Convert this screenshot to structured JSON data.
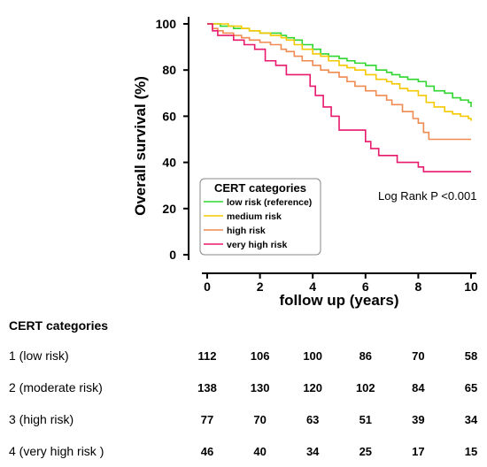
{
  "chart_data": {
    "type": "line",
    "title": "",
    "xlabel": "follow up (years)",
    "ylabel": "Overall survival (%)",
    "xlim": [
      0,
      10
    ],
    "ylim": [
      0,
      100
    ],
    "x_ticks": [
      0,
      2,
      4,
      6,
      8,
      10
    ],
    "y_ticks": [
      0,
      20,
      40,
      60,
      80,
      100
    ],
    "grid": false,
    "step": true,
    "legend": {
      "title": "CERT categories",
      "placement": "bottom-left"
    },
    "annotation": "Log Rank P <0.001",
    "series": [
      {
        "name": "low risk (reference)",
        "color": "#2ed62e",
        "x": [
          0,
          0.3,
          0.5,
          0.8,
          1.0,
          1.3,
          1.6,
          2.0,
          2.4,
          2.8,
          3.0,
          3.3,
          3.6,
          4.0,
          4.3,
          4.6,
          5.0,
          5.3,
          5.6,
          6.0,
          6.4,
          6.8,
          7.0,
          7.3,
          7.6,
          8.0,
          8.3,
          8.6,
          9.0,
          9.3,
          9.6,
          9.9,
          10.0
        ],
        "y": [
          100,
          100,
          99,
          99,
          98,
          98,
          97,
          96,
          96,
          95,
          94,
          93,
          91,
          89,
          87,
          86,
          85,
          84,
          83,
          82,
          80,
          79,
          78,
          77,
          76,
          75,
          73,
          71,
          70,
          68,
          67,
          66,
          64
        ]
      },
      {
        "name": "medium risk",
        "color": "#f5c800",
        "x": [
          0,
          0.3,
          0.5,
          0.8,
          1.0,
          1.3,
          1.6,
          2.0,
          2.4,
          2.8,
          3.0,
          3.3,
          3.6,
          4.0,
          4.3,
          4.6,
          5.0,
          5.3,
          5.6,
          6.0,
          6.4,
          6.8,
          7.0,
          7.3,
          7.6,
          8.0,
          8.3,
          8.6,
          9.0,
          9.3,
          9.6,
          9.9,
          10.0
        ],
        "y": [
          100,
          100,
          100,
          99,
          99,
          98,
          97,
          96,
          95,
          94,
          93,
          91,
          89,
          87,
          86,
          84,
          82,
          81,
          80,
          78,
          76,
          75,
          74,
          72,
          71,
          69,
          66,
          64,
          62,
          61,
          60,
          59,
          58
        ]
      },
      {
        "name": "high risk",
        "color": "#f08a50",
        "x": [
          0,
          0.2,
          0.4,
          0.6,
          1.0,
          1.3,
          1.6,
          2.0,
          2.4,
          2.8,
          3.0,
          3.3,
          3.6,
          4.0,
          4.3,
          4.6,
          5.0,
          5.3,
          5.6,
          6.0,
          6.4,
          6.8,
          7.0,
          7.4,
          7.8,
          8.0,
          8.2,
          8.4,
          9.0,
          10.0
        ],
        "y": [
          100,
          98,
          97,
          96,
          95,
          94,
          93,
          92,
          91,
          89,
          88,
          86,
          84,
          82,
          80,
          79,
          77,
          75,
          73,
          71,
          69,
          67,
          65,
          62,
          59,
          57,
          53,
          50,
          50,
          50
        ]
      },
      {
        "name": "very high risk",
        "color": "#e8186c",
        "x": [
          0,
          0.2,
          0.4,
          1.0,
          1.4,
          1.8,
          2.2,
          2.6,
          3.0,
          3.6,
          3.9,
          4.1,
          4.4,
          4.7,
          5.0,
          5.8,
          6.0,
          6.2,
          6.5,
          7.0,
          7.2,
          7.5,
          8.0,
          8.2,
          9.0,
          10.0
        ],
        "y": [
          100,
          97,
          95,
          93,
          91,
          89,
          84,
          82,
          78,
          78,
          73,
          69,
          64,
          60,
          54,
          54,
          49,
          46,
          43,
          43,
          40,
          40,
          38,
          36,
          36,
          36
        ]
      }
    ]
  },
  "risk_table": {
    "title": "CERT categories",
    "rows": [
      {
        "label": "1 (low risk)",
        "values": [
          "112",
          "106",
          "100",
          "86",
          "70",
          "58"
        ]
      },
      {
        "label": "2 (moderate risk)",
        "values": [
          "138",
          "130",
          "120",
          "102",
          "84",
          "65"
        ]
      },
      {
        "label": "3 (high risk)",
        "values": [
          "77",
          "70",
          "63",
          "51",
          "39",
          "34"
        ]
      },
      {
        "label": "4 (very high risk )",
        "values": [
          "46",
          "40",
          "34",
          "25",
          "17",
          "15"
        ]
      }
    ]
  }
}
